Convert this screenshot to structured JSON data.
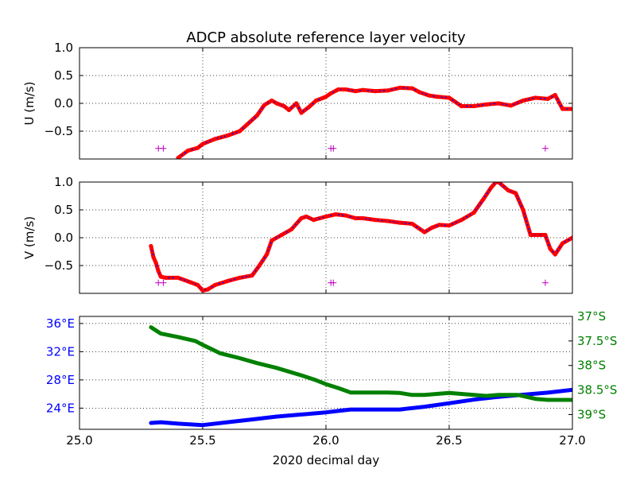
{
  "title": "ADCP absolute reference layer velocity",
  "xlabel": "2020 decimal day",
  "colors": {
    "obs": "#ff0000",
    "fit": "#0000ff",
    "lon": "#0000ff",
    "lat": "#008000",
    "marker": "#bf00bf"
  },
  "chart_data": [
    {
      "type": "scatter",
      "panel": "U",
      "ylabel": "U (m/s)",
      "xlim": [
        25.0,
        27.0
      ],
      "ylim": [
        -1.0,
        1.0
      ],
      "yticks": [
        "1.0",
        "0.5",
        "0.0",
        "−0.5"
      ],
      "grid": true,
      "series": [
        {
          "x": [
            25.4,
            25.44,
            25.48,
            25.5,
            25.55,
            25.6,
            25.65,
            25.68,
            25.72,
            25.75,
            25.78,
            25.8,
            25.83,
            25.85,
            25.88,
            25.9,
            25.93,
            25.96,
            25.99,
            26.0,
            26.02,
            26.05,
            26.08,
            26.12,
            26.15,
            26.2,
            26.25,
            26.3,
            26.35,
            26.38,
            26.42,
            26.45,
            26.5,
            26.55,
            26.6,
            26.65,
            26.7,
            26.75,
            26.8,
            26.85,
            26.9,
            26.93,
            26.96,
            27.0
          ],
          "y": [
            -0.98,
            -0.85,
            -0.8,
            -0.73,
            -0.64,
            -0.58,
            -0.5,
            -0.38,
            -0.22,
            -0.03,
            0.05,
            0.0,
            -0.05,
            -0.12,
            0.0,
            -0.17,
            -0.07,
            0.05,
            0.1,
            0.12,
            0.18,
            0.25,
            0.25,
            0.22,
            0.24,
            0.22,
            0.23,
            0.28,
            0.27,
            0.2,
            0.14,
            0.12,
            0.1,
            -0.05,
            -0.05,
            -0.02,
            0.0,
            -0.04,
            0.05,
            0.1,
            0.08,
            0.15,
            -0.1,
            -0.1
          ]
        }
      ],
      "markers_x": [
        25.32,
        25.34,
        26.02,
        26.03,
        26.89
      ],
      "marker_y": -0.81
    },
    {
      "type": "scatter",
      "panel": "V",
      "ylabel": "V (m/s)",
      "xlim": [
        25.0,
        27.0
      ],
      "ylim": [
        -1.0,
        1.0
      ],
      "yticks": [
        "1.0",
        "0.5",
        "0.0",
        "−0.5"
      ],
      "grid": true,
      "series": [
        {
          "x": [
            25.29,
            25.3,
            25.31,
            25.32,
            25.33,
            25.35,
            25.4,
            25.45,
            25.48,
            25.5,
            25.52,
            25.55,
            25.6,
            25.65,
            25.7,
            25.73,
            25.76,
            25.78,
            25.82,
            25.86,
            25.9,
            25.92,
            25.95,
            26.0,
            26.04,
            26.08,
            26.12,
            26.15,
            26.2,
            26.25,
            26.3,
            26.35,
            26.4,
            26.43,
            26.46,
            26.5,
            26.55,
            26.6,
            26.64,
            26.67,
            26.69,
            26.7,
            26.74,
            26.77,
            26.8,
            26.83,
            26.86,
            26.89,
            26.91,
            26.93,
            26.96,
            27.0
          ],
          "y": [
            -0.15,
            -0.35,
            -0.45,
            -0.6,
            -0.7,
            -0.72,
            -0.72,
            -0.8,
            -0.85,
            -0.95,
            -0.93,
            -0.85,
            -0.78,
            -0.72,
            -0.68,
            -0.5,
            -0.3,
            -0.05,
            0.05,
            0.15,
            0.35,
            0.38,
            0.32,
            0.38,
            0.42,
            0.4,
            0.35,
            0.35,
            0.32,
            0.3,
            0.27,
            0.25,
            0.1,
            0.18,
            0.23,
            0.22,
            0.32,
            0.45,
            0.7,
            0.9,
            1.0,
            1.0,
            0.85,
            0.8,
            0.5,
            0.05,
            0.05,
            0.05,
            -0.2,
            -0.3,
            -0.1,
            0.0
          ]
        }
      ],
      "markers_x": [
        25.32,
        25.34,
        26.02,
        26.03,
        26.89
      ],
      "marker_y": -0.81
    },
    {
      "type": "line",
      "panel": "position",
      "xlim": [
        25.0,
        27.0
      ],
      "xticks": [
        "25.0",
        "25.5",
        "26.0",
        "26.5",
        "27.0"
      ],
      "ylim_left": [
        21.0,
        37.0
      ],
      "ylim_right": [
        -39.3,
        -37.0
      ],
      "yticks_left": [
        "36°E",
        "32°E",
        "28°E",
        "24°E"
      ],
      "yticks_right": [
        "37°S",
        "37.5°S",
        "38°S",
        "38.5°S",
        "39°S"
      ],
      "grid": true,
      "series": [
        {
          "axis": "left",
          "x": [
            25.29,
            25.33,
            25.4,
            25.5,
            25.6,
            25.7,
            25.8,
            25.9,
            26.0,
            26.05,
            26.1,
            26.2,
            26.3,
            26.4,
            26.5,
            26.6,
            26.7,
            26.8,
            26.9,
            27.0
          ],
          "y": [
            21.9,
            22.0,
            21.8,
            21.6,
            22.0,
            22.4,
            22.8,
            23.1,
            23.4,
            23.6,
            23.8,
            23.8,
            23.8,
            24.2,
            24.7,
            25.2,
            25.6,
            25.9,
            26.2,
            26.6
          ]
        },
        {
          "axis": "right",
          "x": [
            25.29,
            25.33,
            25.4,
            25.47,
            25.5,
            25.57,
            25.65,
            25.72,
            25.8,
            25.9,
            25.96,
            26.0,
            26.05,
            26.1,
            26.15,
            26.25,
            26.3,
            26.35,
            26.4,
            26.5,
            26.6,
            26.65,
            26.7,
            26.78,
            26.85,
            26.9,
            27.0
          ],
          "y": [
            -37.22,
            -37.35,
            -37.42,
            -37.5,
            -37.58,
            -37.75,
            -37.85,
            -37.95,
            -38.05,
            -38.2,
            -38.3,
            -38.38,
            -38.46,
            -38.55,
            -38.55,
            -38.55,
            -38.56,
            -38.6,
            -38.6,
            -38.56,
            -38.6,
            -38.62,
            -38.6,
            -38.6,
            -38.68,
            -38.7,
            -38.7
          ]
        }
      ]
    }
  ]
}
